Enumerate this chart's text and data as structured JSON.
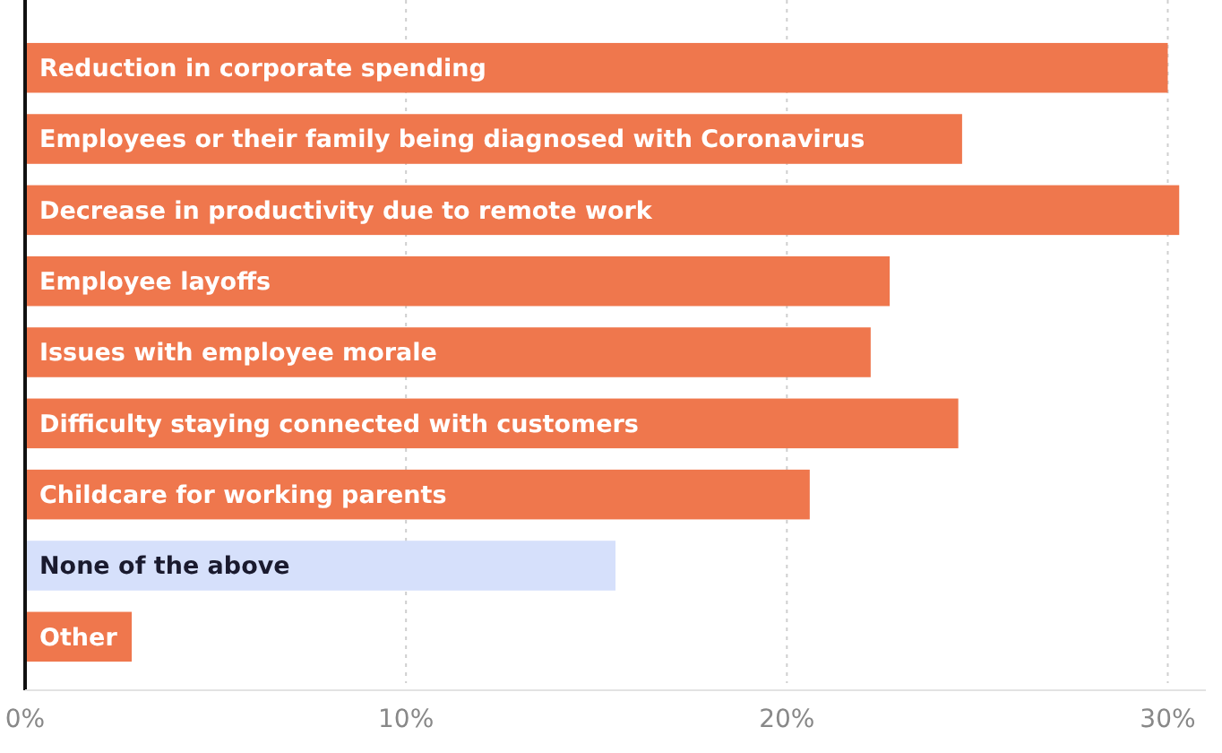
{
  "chart_data": {
    "type": "bar",
    "orientation": "horizontal",
    "categories": [
      "Reduction in corporate spending",
      "Employees or their family being diagnosed with Coronavirus",
      "Decrease in productivity due to remote work",
      "Employee layoffs",
      "Issues with employee morale",
      "Difficulty staying connected with customers",
      "Childcare for working parents",
      "None of the above",
      "Other"
    ],
    "values": [
      30.0,
      24.6,
      30.3,
      22.7,
      22.2,
      24.5,
      20.6,
      15.5,
      2.8
    ],
    "colors": [
      "#ef774d",
      "#ef774d",
      "#ef774d",
      "#ef774d",
      "#ef774d",
      "#ef774d",
      "#ef774d",
      "#d6e0fb",
      "#ef774d"
    ],
    "xlim": [
      0,
      31
    ],
    "xticks": [
      {
        "value": 0,
        "label": "0%"
      },
      {
        "value": 10,
        "label": "10%"
      },
      {
        "value": 20,
        "label": "20%"
      },
      {
        "value": 30,
        "label": "30%"
      }
    ],
    "grid": "x"
  }
}
